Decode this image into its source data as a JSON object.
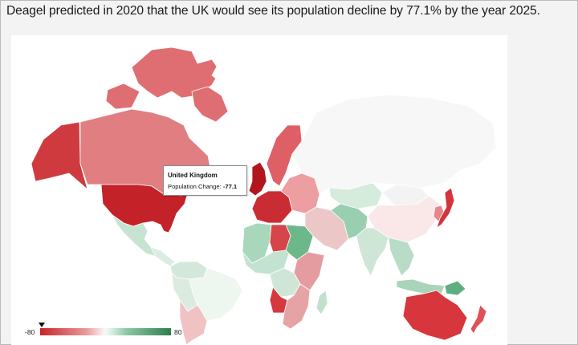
{
  "caption": "Deagel predicted in 2020 that the UK would see its population decline by 77.1% by the year 2025.",
  "tooltip": {
    "country": "United Kingdom",
    "label": "Population Change:",
    "value": "-77.1"
  },
  "legend": {
    "min_label": "-80",
    "max_label": "80",
    "marker_value": -80,
    "colors": {
      "strong_decline": "#c62428",
      "mild_decline": "#e8999b",
      "neutral": "#f7f7f7",
      "mild_growth": "#8cc8a6",
      "strong_growth": "#2e7d4b"
    }
  },
  "regions": [
    {
      "name": "Alaska",
      "color": "#cf3a3f"
    },
    {
      "name": "Canada",
      "color": "#e07e82"
    },
    {
      "name": "Canadian Arctic",
      "color": "#df6e72"
    },
    {
      "name": "Greenland",
      "color": "#ffffff"
    },
    {
      "name": "United States",
      "color": "#c42229"
    },
    {
      "name": "Mexico",
      "color": "#c7e3d2"
    },
    {
      "name": "Central America",
      "color": "#d9ede0"
    },
    {
      "name": "Colombia/Venezuela",
      "color": "#d4e8da"
    },
    {
      "name": "Brazil",
      "color": "#eef6f0"
    },
    {
      "name": "Peru/Bolivia",
      "color": "#dcebe0"
    },
    {
      "name": "Argentina/Chile",
      "color": "#f0c2c4"
    },
    {
      "name": "United Kingdom",
      "color": "#b1161d"
    },
    {
      "name": "Western Europe",
      "color": "#c92d33"
    },
    {
      "name": "Scandinavia",
      "color": "#de5f65"
    },
    {
      "name": "Eastern Europe",
      "color": "#ec9ea1"
    },
    {
      "name": "Russia",
      "color": "#f7f7f7"
    },
    {
      "name": "Kazakhstan",
      "color": "#d5ebdc"
    },
    {
      "name": "China",
      "color": "#fae7e8"
    },
    {
      "name": "Mongolia",
      "color": "#f3f3f3"
    },
    {
      "name": "Japan",
      "color": "#d2353b"
    },
    {
      "name": "Korea",
      "color": "#e6858a"
    },
    {
      "name": "India",
      "color": "#cfe6d7"
    },
    {
      "name": "Middle East",
      "color": "#ecc7c8"
    },
    {
      "name": "Iran/Pakistan",
      "color": "#99cfb0"
    },
    {
      "name": "Southeast Asia",
      "color": "#b8dcc5"
    },
    {
      "name": "Indonesia",
      "color": "#a9d4b9"
    },
    {
      "name": "Libya",
      "color": "#d64549"
    },
    {
      "name": "North Africa",
      "color": "#a9d7bb"
    },
    {
      "name": "Sahel",
      "color": "#c3e2cf"
    },
    {
      "name": "Sudan",
      "color": "#6db88b"
    },
    {
      "name": "Central Africa",
      "color": "#cfe6d7"
    },
    {
      "name": "Angola",
      "color": "#d5383e"
    },
    {
      "name": "East Africa",
      "color": "#e49ca0"
    },
    {
      "name": "Southern Africa",
      "color": "#e6a3a6"
    },
    {
      "name": "Madagascar",
      "color": "#c2e0cc"
    },
    {
      "name": "Papua New Guinea",
      "color": "#5fae7f"
    },
    {
      "name": "Australia",
      "color": "#d6363c"
    },
    {
      "name": "New Zealand",
      "color": "#dc5257"
    }
  ]
}
